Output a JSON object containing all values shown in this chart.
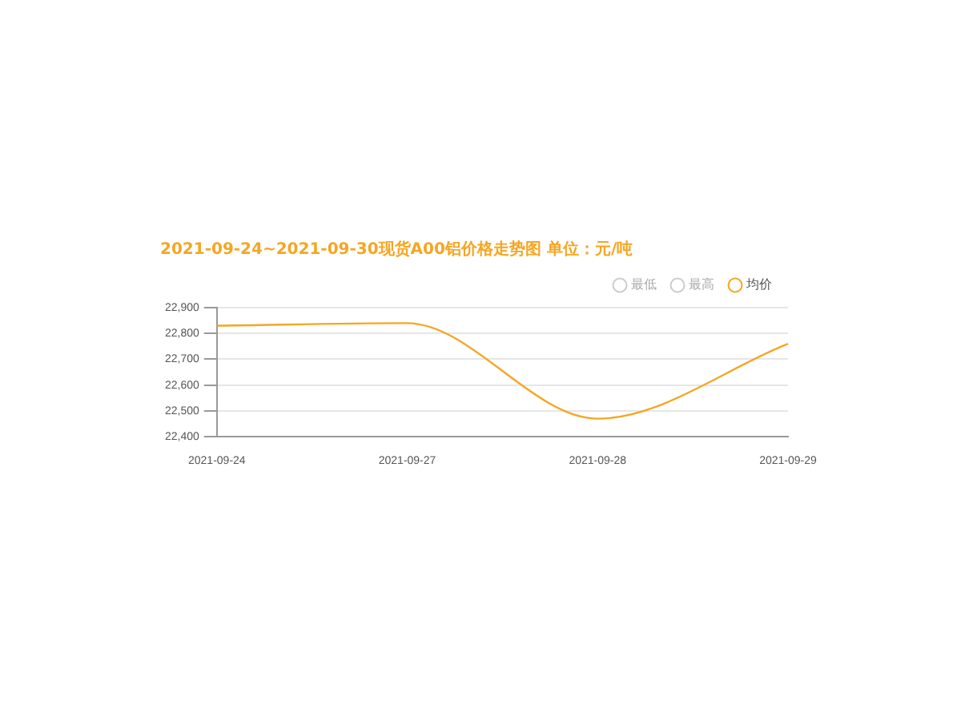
{
  "chart_data": {
    "type": "line",
    "title": "2021-09-24~2021-09-30现货A00铝价格走势图 单位：元/吨",
    "categories": [
      "2021-09-24",
      "2021-09-27",
      "2021-09-28",
      "2021-09-29"
    ],
    "series": [
      {
        "name": "最低",
        "color": "#cccccc",
        "values": [
          null,
          null,
          null,
          null
        ]
      },
      {
        "name": "最高",
        "color": "#cccccc",
        "values": [
          null,
          null,
          null,
          null
        ]
      },
      {
        "name": "均价",
        "color": "#f5a623",
        "values": [
          22830,
          22840,
          22470,
          22760
        ]
      }
    ],
    "ylim": [
      22400,
      22900
    ],
    "yticks": [
      {
        "value": 22400,
        "label": "22,400"
      },
      {
        "value": 22500,
        "label": "22,500"
      },
      {
        "value": 22600,
        "label": "22,600"
      },
      {
        "value": 22700,
        "label": "22,700"
      },
      {
        "value": 22800,
        "label": "22,800"
      },
      {
        "value": 22900,
        "label": "22,900"
      }
    ],
    "grid": "y",
    "legend": "top right",
    "marker": "none"
  }
}
